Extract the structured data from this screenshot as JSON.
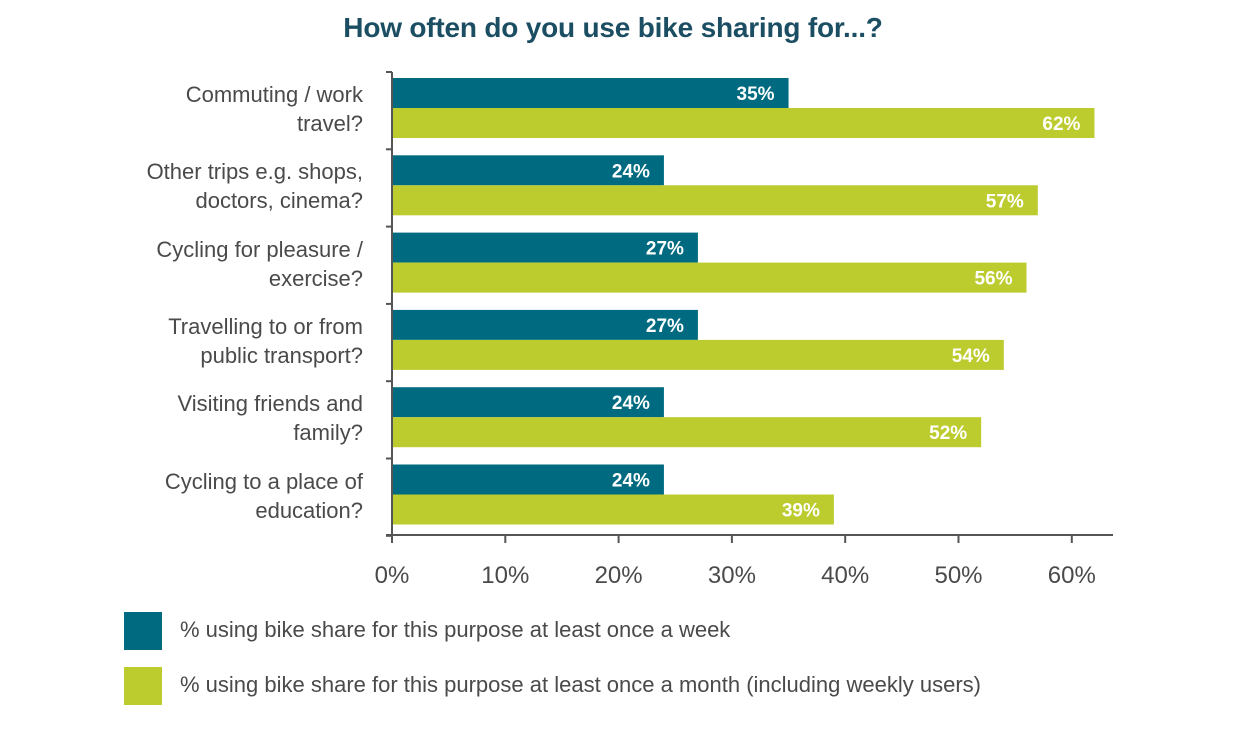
{
  "chart_data": {
    "type": "bar",
    "orientation": "horizontal",
    "title": "How often do you use bike sharing for...?",
    "categories": [
      [
        "Commuting / work",
        "travel?"
      ],
      [
        "Other trips e.g. shops,",
        "doctors, cinema?"
      ],
      [
        "Cycling for pleasure /",
        "exercise?"
      ],
      [
        "Travelling to or from",
        "public transport?"
      ],
      [
        "Visiting friends and",
        "family?"
      ],
      [
        "Cycling to a place of",
        "education?"
      ]
    ],
    "series": [
      {
        "name": "% using bike share for this purpose at least once a week",
        "color": "#006b80",
        "values": [
          35,
          24,
          27,
          27,
          24,
          24
        ],
        "labels": [
          "35%",
          "24%",
          "27%",
          "27%",
          "24%",
          "24%"
        ]
      },
      {
        "name": "% using bike share for this purpose at least once a month (including weekly users)",
        "color": "#bccb2d",
        "values": [
          62,
          57,
          56,
          54,
          52,
          39
        ],
        "labels": [
          "62%",
          "57%",
          "56%",
          "54%",
          "52%",
          "39%"
        ]
      }
    ],
    "xlim": [
      0,
      60
    ],
    "xticks": [
      "0%",
      "10%",
      "20%",
      "30%",
      "40%",
      "50%",
      "60%"
    ],
    "grid": false,
    "legend_position": "bottom-left"
  }
}
